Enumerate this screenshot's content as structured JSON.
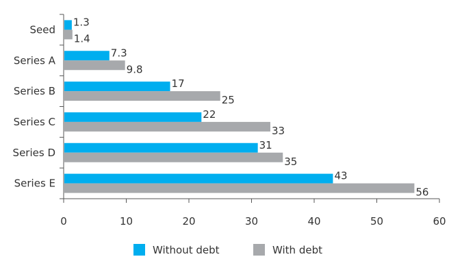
{
  "chart_data": {
    "type": "bar",
    "orientation": "horizontal",
    "categories": [
      "Seed",
      "Series A",
      "Series B",
      "Series C",
      "Series D",
      "Series E"
    ],
    "series": [
      {
        "name": "Without debt",
        "color": "#00aeef",
        "values": [
          1.3,
          7.3,
          17,
          22,
          31,
          43
        ],
        "labels": [
          "1.3",
          "7.3",
          "17",
          "22",
          "31",
          "43"
        ]
      },
      {
        "name": "With debt",
        "color": "#a7a9ac",
        "values": [
          1.4,
          9.8,
          25,
          33,
          35,
          56
        ],
        "labels": [
          "1.4",
          "9.8",
          "25",
          "33",
          "35",
          "56"
        ]
      }
    ],
    "xlim": [
      0,
      60
    ],
    "xticks": [
      0,
      10,
      20,
      30,
      40,
      50,
      60
    ],
    "xtick_labels": [
      "0",
      "10",
      "20",
      "30",
      "40",
      "50",
      "60"
    ],
    "grid": false,
    "legend_position": "bottom"
  }
}
